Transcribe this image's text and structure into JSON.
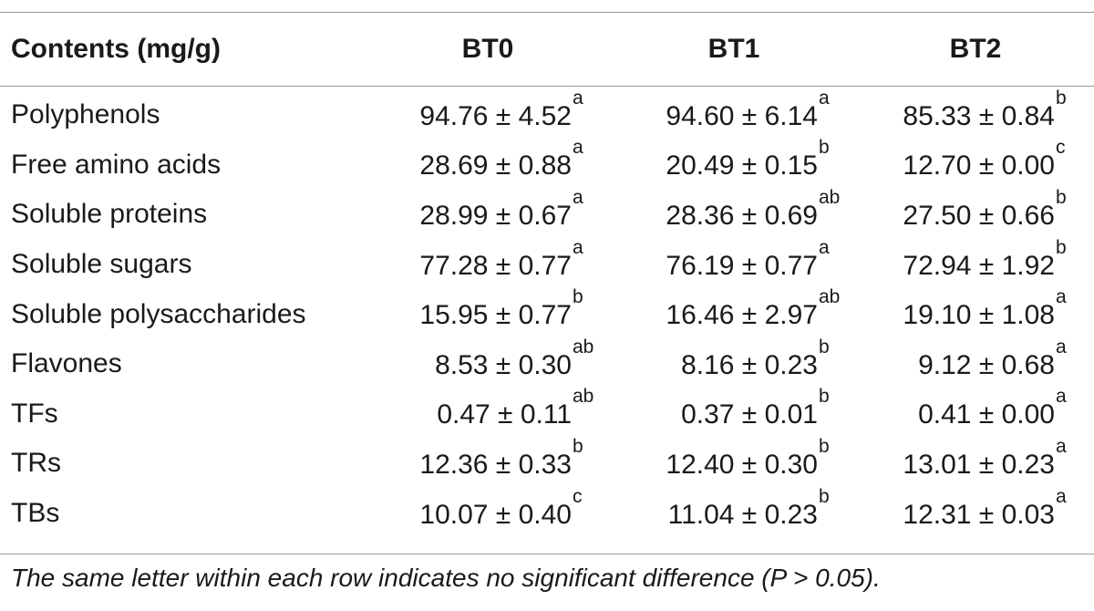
{
  "table": {
    "headers": [
      "Contents (mg/g)",
      "BT0",
      "BT1",
      "BT2"
    ],
    "rows": [
      {
        "label": "Polyphenols",
        "cells": [
          {
            "value": "94.76 ± 4.52",
            "letter": "a"
          },
          {
            "value": "94.60 ± 6.14",
            "letter": "a"
          },
          {
            "value": "85.33 ± 0.84",
            "letter": "b"
          }
        ]
      },
      {
        "label": "Free amino acids",
        "cells": [
          {
            "value": "28.69 ± 0.88",
            "letter": "a"
          },
          {
            "value": "20.49 ± 0.15",
            "letter": "b"
          },
          {
            "value": "12.70 ± 0.00",
            "letter": "c"
          }
        ]
      },
      {
        "label": "Soluble proteins",
        "cells": [
          {
            "value": "28.99 ± 0.67",
            "letter": "a"
          },
          {
            "value": "28.36 ± 0.69",
            "letter": "ab"
          },
          {
            "value": "27.50 ± 0.66",
            "letter": "b"
          }
        ]
      },
      {
        "label": "Soluble sugars",
        "cells": [
          {
            "value": "77.28 ± 0.77",
            "letter": "a"
          },
          {
            "value": "76.19 ± 0.77",
            "letter": "a"
          },
          {
            "value": "72.94 ± 1.92",
            "letter": "b"
          }
        ]
      },
      {
        "label": "Soluble polysaccharides",
        "cells": [
          {
            "value": "15.95 ± 0.77",
            "letter": "b"
          },
          {
            "value": "16.46 ± 2.97",
            "letter": "ab"
          },
          {
            "value": "19.10 ± 1.08",
            "letter": "a"
          }
        ]
      },
      {
        "label": "Flavones",
        "cells": [
          {
            "value": "8.53 ± 0.30",
            "letter": "ab"
          },
          {
            "value": "8.16 ± 0.23",
            "letter": "b"
          },
          {
            "value": "9.12 ± 0.68",
            "letter": "a"
          }
        ]
      },
      {
        "label": "TFs",
        "cells": [
          {
            "value": "0.47 ± 0.11",
            "letter": "ab"
          },
          {
            "value": "0.37 ± 0.01",
            "letter": "b"
          },
          {
            "value": "0.41 ± 0.00",
            "letter": "a"
          }
        ]
      },
      {
        "label": "TRs",
        "cells": [
          {
            "value": "12.36 ± 0.33",
            "letter": "b"
          },
          {
            "value": "12.40 ± 0.30",
            "letter": "b"
          },
          {
            "value": "13.01 ± 0.23",
            "letter": "a"
          }
        ]
      },
      {
        "label": "TBs",
        "cells": [
          {
            "value": "10.07 ± 0.40",
            "letter": "c"
          },
          {
            "value": "11.04 ± 0.23",
            "letter": "b"
          },
          {
            "value": "12.31 ± 0.03",
            "letter": "a"
          }
        ]
      }
    ]
  },
  "footnote": "The same letter within each row indicates no significant difference (P > 0.05)."
}
